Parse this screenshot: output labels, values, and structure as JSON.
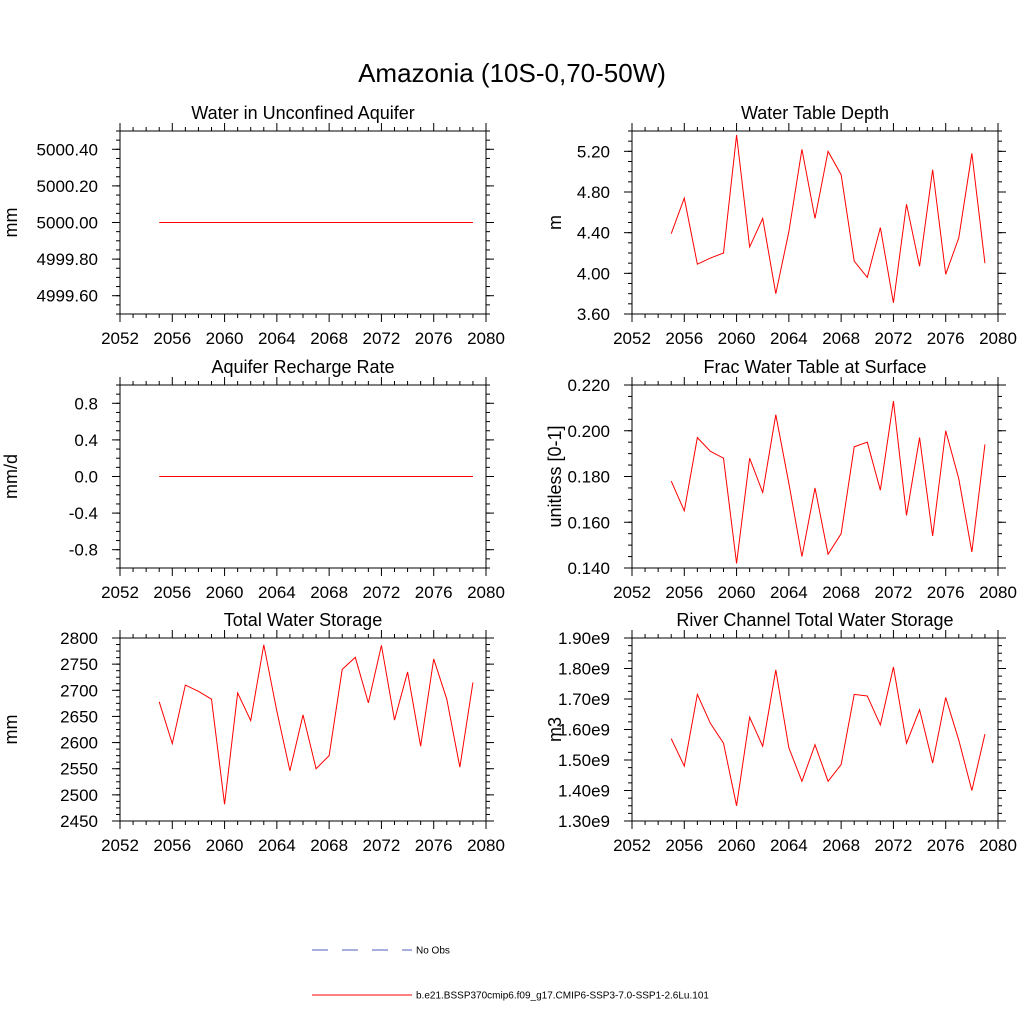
{
  "figure": {
    "title": "Amazonia (10S-0,70-50W)"
  },
  "chart_data": [
    {
      "type": "line",
      "title": "Water in Unconfined Aquifer",
      "xlabel": "",
      "ylabel": "mm",
      "xlim": [
        2052,
        2080
      ],
      "ylim": [
        4999.5,
        5000.5
      ],
      "xticks": [
        "2052",
        "2056",
        "2060",
        "2064",
        "2068",
        "2072",
        "2076",
        "2080"
      ],
      "yticks": [
        "4999.60",
        "4999.80",
        "5000.00",
        "5000.20",
        "5000.40"
      ],
      "x": [
        2055,
        2056,
        2057,
        2058,
        2059,
        2060,
        2061,
        2062,
        2063,
        2064,
        2065,
        2066,
        2067,
        2068,
        2069,
        2070,
        2071,
        2072,
        2073,
        2074,
        2075,
        2076,
        2077,
        2078,
        2079
      ],
      "series": [
        {
          "color": "#ff0000",
          "values": [
            5000,
            5000,
            5000,
            5000,
            5000,
            5000,
            5000,
            5000,
            5000,
            5000,
            5000,
            5000,
            5000,
            5000,
            5000,
            5000,
            5000,
            5000,
            5000,
            5000,
            5000,
            5000,
            5000,
            5000,
            5000
          ]
        }
      ]
    },
    {
      "type": "line",
      "title": "Water Table Depth",
      "xlabel": "",
      "ylabel": "m",
      "xlim": [
        2052,
        2080
      ],
      "ylim": [
        3.6,
        5.4
      ],
      "xticks": [
        "2052",
        "2056",
        "2060",
        "2064",
        "2068",
        "2072",
        "2076",
        "2080"
      ],
      "yticks": [
        "3.60",
        "4.00",
        "4.40",
        "4.80",
        "5.20"
      ],
      "x": [
        2055,
        2056,
        2057,
        2058,
        2059,
        2060,
        2061,
        2062,
        2063,
        2064,
        2065,
        2066,
        2067,
        2068,
        2069,
        2070,
        2071,
        2072,
        2073,
        2074,
        2075,
        2076,
        2077,
        2078,
        2079
      ],
      "series": [
        {
          "color": "#ff0000",
          "values": [
            4.39,
            4.74,
            4.09,
            4.15,
            4.2,
            5.36,
            4.26,
            4.54,
            3.8,
            4.41,
            5.22,
            4.54,
            5.2,
            4.97,
            4.12,
            3.96,
            4.45,
            3.71,
            4.68,
            4.07,
            5.02,
            3.99,
            4.35,
            5.18,
            4.1
          ]
        }
      ]
    },
    {
      "type": "line",
      "title": "Aquifer Recharge Rate",
      "xlabel": "",
      "ylabel": "mm/d",
      "xlim": [
        2052,
        2080
      ],
      "ylim": [
        -1.0,
        1.0
      ],
      "xticks": [
        "2052",
        "2056",
        "2060",
        "2064",
        "2068",
        "2072",
        "2076",
        "2080"
      ],
      "yticks": [
        "-0.8",
        "-0.4",
        "0.0",
        "0.4",
        "0.8"
      ],
      "x": [
        2055,
        2056,
        2057,
        2058,
        2059,
        2060,
        2061,
        2062,
        2063,
        2064,
        2065,
        2066,
        2067,
        2068,
        2069,
        2070,
        2071,
        2072,
        2073,
        2074,
        2075,
        2076,
        2077,
        2078,
        2079
      ],
      "series": [
        {
          "color": "#ff0000",
          "values": [
            0,
            0,
            0,
            0,
            0,
            0,
            0,
            0,
            0,
            0,
            0,
            0,
            0,
            0,
            0,
            0,
            0,
            0,
            0,
            0,
            0,
            0,
            0,
            0,
            0
          ]
        }
      ]
    },
    {
      "type": "line",
      "title": "Frac Water Table at Surface",
      "xlabel": "",
      "ylabel": "unitless [0-1]",
      "xlim": [
        2052,
        2080
      ],
      "ylim": [
        0.14,
        0.22
      ],
      "xticks": [
        "2052",
        "2056",
        "2060",
        "2064",
        "2068",
        "2072",
        "2076",
        "2080"
      ],
      "yticks": [
        "0.140",
        "0.160",
        "0.180",
        "0.200",
        "0.220"
      ],
      "x": [
        2055,
        2056,
        2057,
        2058,
        2059,
        2060,
        2061,
        2062,
        2063,
        2064,
        2065,
        2066,
        2067,
        2068,
        2069,
        2070,
        2071,
        2072,
        2073,
        2074,
        2075,
        2076,
        2077,
        2078,
        2079
      ],
      "series": [
        {
          "color": "#ff0000",
          "values": [
            0.178,
            0.165,
            0.197,
            0.191,
            0.188,
            0.142,
            0.188,
            0.173,
            0.207,
            0.177,
            0.145,
            0.175,
            0.146,
            0.155,
            0.193,
            0.195,
            0.174,
            0.213,
            0.163,
            0.197,
            0.154,
            0.2,
            0.179,
            0.147,
            0.194
          ]
        }
      ]
    },
    {
      "type": "line",
      "title": "Total Water Storage",
      "xlabel": "",
      "ylabel": "mm",
      "xlim": [
        2052,
        2080
      ],
      "ylim": [
        2450,
        2800
      ],
      "xticks": [
        "2052",
        "2056",
        "2060",
        "2064",
        "2068",
        "2072",
        "2076",
        "2080"
      ],
      "yticks": [
        "2450",
        "2500",
        "2550",
        "2600",
        "2650",
        "2700",
        "2750",
        "2800"
      ],
      "x": [
        2055,
        2056,
        2057,
        2058,
        2059,
        2060,
        2061,
        2062,
        2063,
        2064,
        2065,
        2066,
        2067,
        2068,
        2069,
        2070,
        2071,
        2072,
        2073,
        2074,
        2075,
        2076,
        2077,
        2078,
        2079
      ],
      "series": [
        {
          "color": "#ff0000",
          "values": [
            2678,
            2598,
            2710,
            2698,
            2683,
            2482,
            2695,
            2642,
            2787,
            2660,
            2546,
            2653,
            2550,
            2575,
            2740,
            2763,
            2676,
            2786,
            2643,
            2735,
            2593,
            2760,
            2683,
            2553,
            2715
          ]
        }
      ]
    },
    {
      "type": "line",
      "title": "River Channel Total Water Storage",
      "xlabel": "",
      "ylabel": "m3",
      "xlim": [
        2052,
        2080
      ],
      "ylim": [
        1300000000.0,
        1900000000.0
      ],
      "xticks": [
        "2052",
        "2056",
        "2060",
        "2064",
        "2068",
        "2072",
        "2076",
        "2080"
      ],
      "yticks": [
        "1.30e9",
        "1.40e9",
        "1.50e9",
        "1.60e9",
        "1.70e9",
        "1.80e9",
        "1.90e9"
      ],
      "x": [
        2055,
        2056,
        2057,
        2058,
        2059,
        2060,
        2061,
        2062,
        2063,
        2064,
        2065,
        2066,
        2067,
        2068,
        2069,
        2070,
        2071,
        2072,
        2073,
        2074,
        2075,
        2076,
        2077,
        2078,
        2079
      ],
      "series": [
        {
          "color": "#ff0000",
          "values": [
            1570000000.0,
            1480000000.0,
            1715000000.0,
            1620000000.0,
            1555000000.0,
            1350000000.0,
            1640000000.0,
            1545000000.0,
            1795000000.0,
            1540000000.0,
            1430000000.0,
            1550000000.0,
            1430000000.0,
            1485000000.0,
            1715000000.0,
            1710000000.0,
            1615000000.0,
            1805000000.0,
            1555000000.0,
            1665000000.0,
            1490000000.0,
            1705000000.0,
            1565000000.0,
            1400000000.0,
            1585000000.0
          ]
        }
      ]
    }
  ],
  "legend": [
    {
      "label": "No Obs",
      "color": "#4f5fbf",
      "style": "dashed"
    },
    {
      "label": "b.e21.BSSP370cmip6.f09_g17.CMIP6-SSP3-7.0-SSP1-2.6Lu.101",
      "color": "#ff0000",
      "style": "solid"
    }
  ]
}
